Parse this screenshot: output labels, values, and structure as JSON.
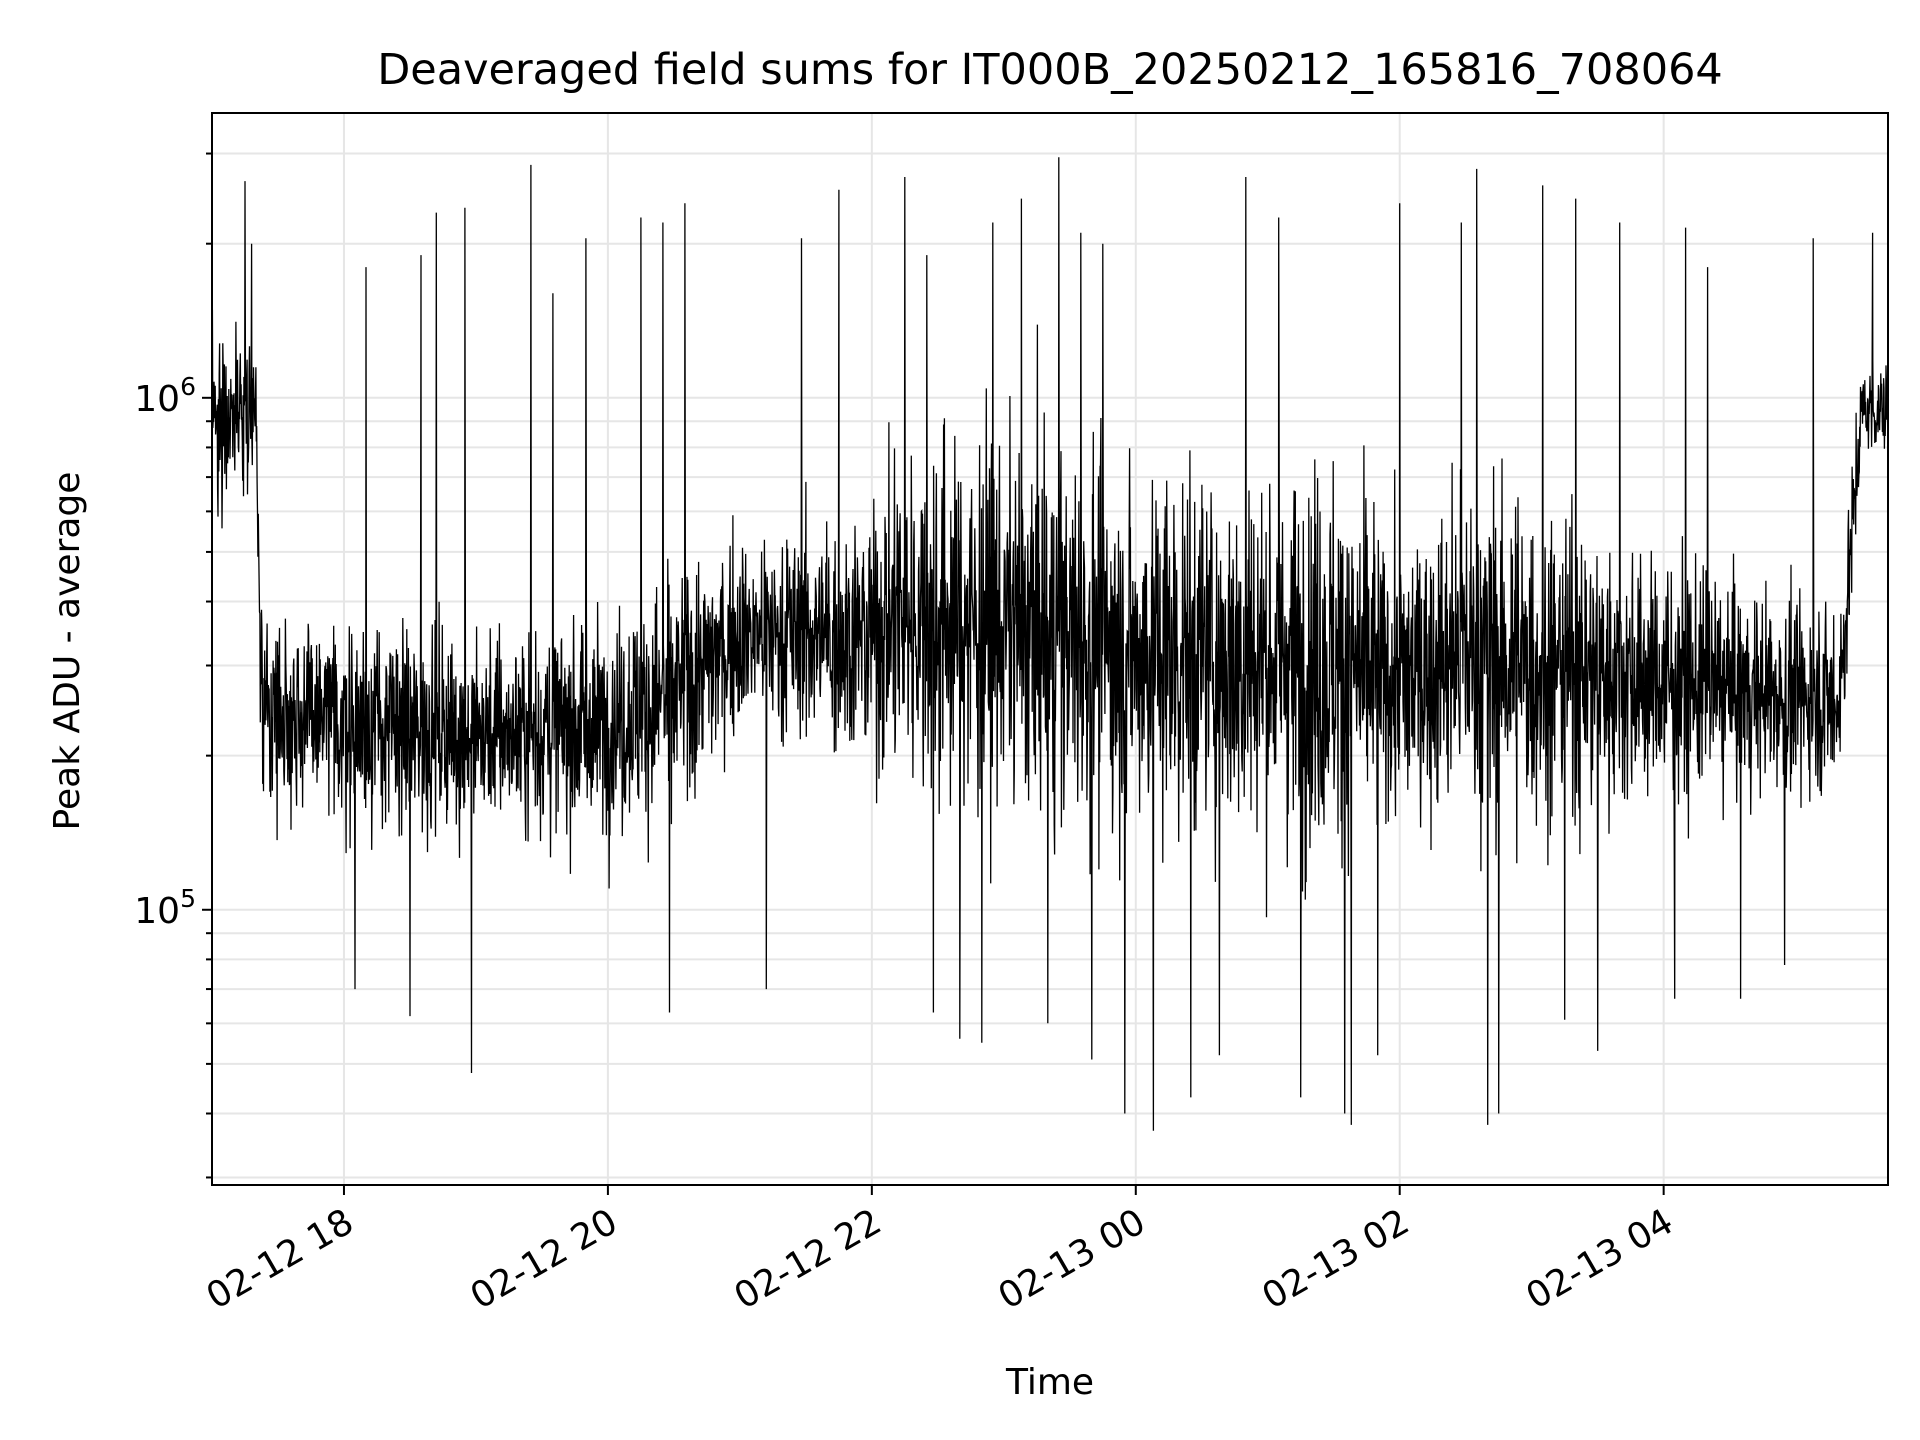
{
  "chart_data": {
    "type": "line",
    "title": "Deaveraged field sums for IT000B_20250212_165816_708064",
    "xlabel": "Time",
    "ylabel": "Peak ADU - average",
    "x_start": "2025-02-12 17:00",
    "x_end": "2025-02-13 05:42",
    "xlim": [
      "2025-02-12 17:00",
      "2025-02-13 05:42"
    ],
    "x_ticks": [
      "02-12 18",
      "02-12 20",
      "02-12 22",
      "02-13 00",
      "02-13 02",
      "02-13 04"
    ],
    "x_tick_times": [
      "2025-02-12 18:00",
      "2025-02-12 20:00",
      "2025-02-12 22:00",
      "2025-02-13 00:00",
      "2025-02-13 02:00",
      "2025-02-13 04:00"
    ],
    "y_scale": "log",
    "ylim": [
      29000,
      3600000
    ],
    "y_ticks": [
      {
        "value": 100000,
        "base": "10",
        "exp": "5"
      },
      {
        "value": 1000000,
        "base": "10",
        "exp": "6"
      }
    ],
    "grid": true,
    "line_color": "#000000",
    "grid_color": "#e6e6e6",
    "envelope": {
      "time": [
        "2025-02-12 17:00",
        "2025-02-12 17:20",
        "2025-02-12 17:22",
        "2025-02-12 18:00",
        "2025-02-12 19:00",
        "2025-02-12 20:00",
        "2025-02-12 20:30",
        "2025-02-12 21:00",
        "2025-02-12 22:00",
        "2025-02-12 22:10",
        "2025-02-12 23:00",
        "2025-02-13 00:00",
        "2025-02-13 01:00",
        "2025-02-13 01:30",
        "2025-02-13 02:00",
        "2025-02-13 02:30",
        "2025-02-13 03:00",
        "2025-02-13 04:00",
        "2025-02-13 05:00",
        "2025-02-13 05:20",
        "2025-02-13 05:30",
        "2025-02-13 05:42"
      ],
      "center": [
        900000,
        1000000,
        250000,
        230000,
        220000,
        230000,
        260000,
        350000,
        340000,
        380000,
        360000,
        320000,
        310000,
        300000,
        280000,
        320000,
        300000,
        280000,
        260000,
        260000,
        950000,
        950000
      ],
      "spread_decades": [
        0.28,
        0.25,
        0.3,
        0.3,
        0.32,
        0.34,
        0.4,
        0.3,
        0.4,
        0.55,
        0.6,
        0.58,
        0.55,
        0.62,
        0.45,
        0.55,
        0.5,
        0.38,
        0.3,
        0.3,
        0.15,
        0.15
      ]
    },
    "spikes_up": [
      [
        "2025-02-12 17:15",
        2650000
      ],
      [
        "2025-02-12 17:18",
        2000000
      ],
      [
        "2025-02-12 18:10",
        1800000
      ],
      [
        "2025-02-12 18:35",
        1900000
      ],
      [
        "2025-02-12 18:42",
        2300000
      ],
      [
        "2025-02-12 18:55",
        2350000
      ],
      [
        "2025-02-12 19:25",
        2850000
      ],
      [
        "2025-02-12 19:35",
        1600000
      ],
      [
        "2025-02-12 19:50",
        2050000
      ],
      [
        "2025-02-12 20:15",
        2250000
      ],
      [
        "2025-02-12 20:25",
        2200000
      ],
      [
        "2025-02-12 20:35",
        2400000
      ],
      [
        "2025-02-12 21:12",
        2750000
      ],
      [
        "2025-02-12 21:28",
        2050000
      ],
      [
        "2025-02-12 21:45",
        2550000
      ],
      [
        "2025-02-12 22:15",
        2700000
      ],
      [
        "2025-02-12 22:25",
        1900000
      ],
      [
        "2025-02-12 22:40",
        2350000
      ],
      [
        "2025-02-12 22:55",
        2200000
      ],
      [
        "2025-02-12 23:08",
        2450000
      ],
      [
        "2025-02-12 23:25",
        2950000
      ],
      [
        "2025-02-12 23:35",
        2100000
      ],
      [
        "2025-02-12 23:45",
        2000000
      ],
      [
        "2025-02-13 00:50",
        2700000
      ],
      [
        "2025-02-13 01:05",
        2250000
      ],
      [
        "2025-02-13 01:15",
        2050000
      ],
      [
        "2025-02-13 02:00",
        2400000
      ],
      [
        "2025-02-13 02:28",
        2200000
      ],
      [
        "2025-02-13 02:35",
        2800000
      ],
      [
        "2025-02-13 02:45",
        2100000
      ],
      [
        "2025-02-13 03:05",
        2600000
      ],
      [
        "2025-02-13 03:20",
        2450000
      ],
      [
        "2025-02-13 03:30",
        2750000
      ],
      [
        "2025-02-13 03:40",
        2200000
      ],
      [
        "2025-02-13 04:10",
        2150000
      ],
      [
        "2025-02-13 04:20",
        1800000
      ],
      [
        "2025-02-13 05:08",
        2050000
      ],
      [
        "2025-02-13 05:35",
        2100000
      ]
    ],
    "spikes_down": [
      [
        "2025-02-12 18:05",
        70000
      ],
      [
        "2025-02-12 18:30",
        62000
      ],
      [
        "2025-02-12 18:58",
        48000
      ],
      [
        "2025-02-12 20:28",
        63000
      ],
      [
        "2025-02-12 21:12",
        70000
      ],
      [
        "2025-02-12 22:28",
        63000
      ],
      [
        "2025-02-12 22:40",
        56000
      ],
      [
        "2025-02-12 22:50",
        55000
      ],
      [
        "2025-02-12 23:20",
        60000
      ],
      [
        "2025-02-12 23:40",
        51000
      ],
      [
        "2025-02-12 23:55",
        40000
      ],
      [
        "2025-02-13 00:08",
        37000
      ],
      [
        "2025-02-13 00:25",
        43000
      ],
      [
        "2025-02-13 00:38",
        52000
      ],
      [
        "2025-02-13 01:15",
        43000
      ],
      [
        "2025-02-13 01:35",
        40000
      ],
      [
        "2025-02-13 01:38",
        38000
      ],
      [
        "2025-02-13 01:50",
        52000
      ],
      [
        "2025-02-13 02:40",
        38000
      ],
      [
        "2025-02-13 02:45",
        40000
      ],
      [
        "2025-02-13 03:15",
        61000
      ],
      [
        "2025-02-13 03:30",
        53000
      ],
      [
        "2025-02-13 04:05",
        67000
      ],
      [
        "2025-02-13 04:35",
        67000
      ],
      [
        "2025-02-13 04:55",
        78000
      ]
    ]
  }
}
